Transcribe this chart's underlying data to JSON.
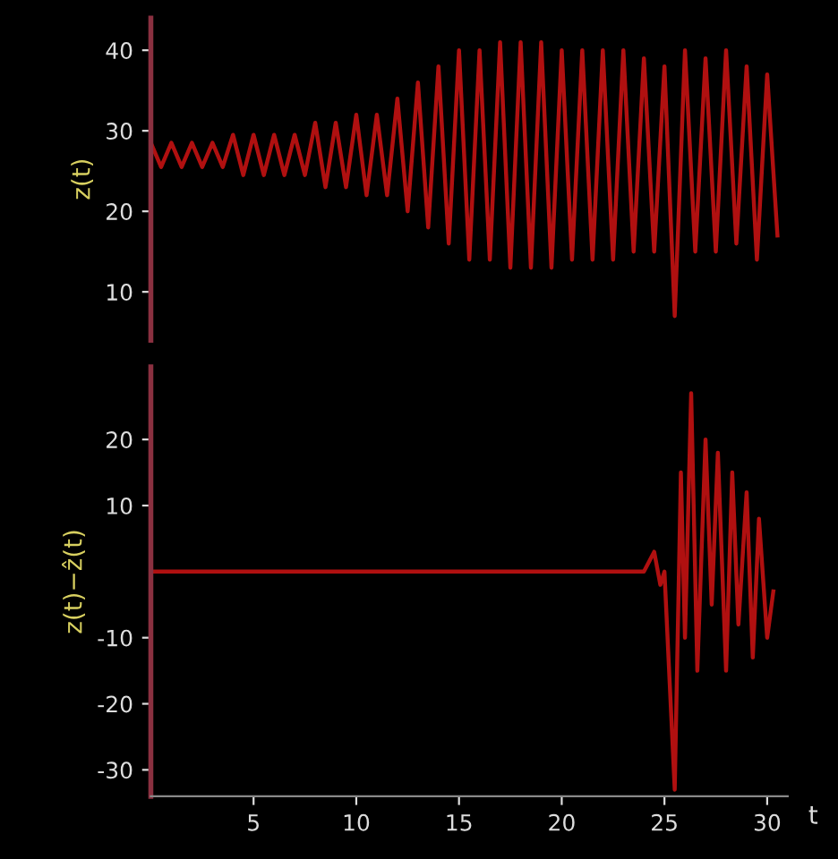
{
  "chart_data": [
    {
      "type": "line",
      "ylabel": "z(t)",
      "tick_labels": "y",
      "ylim": [
        4,
        44
      ],
      "yticks": [
        10,
        20,
        30,
        40
      ],
      "grid": false,
      "legend": false,
      "x": [
        0,
        0.5,
        1,
        1.5,
        2,
        2.5,
        3,
        3.5,
        4,
        4.5,
        5,
        5.5,
        6,
        6.5,
        7,
        7.5,
        8,
        8.5,
        9,
        9.5,
        10,
        10.5,
        11,
        11.5,
        12,
        12.5,
        13,
        13.5,
        14,
        14.5,
        15,
        15.5,
        16,
        16.5,
        17,
        17.5,
        18,
        18.5,
        19,
        19.5,
        20,
        20.5,
        21,
        21.5,
        22,
        22.5,
        23,
        23.5,
        24,
        24.5,
        25,
        25.5,
        26,
        26.5,
        27,
        27.5,
        28,
        28.5,
        29,
        29.5,
        30,
        30.5
      ],
      "series": [
        {
          "color": "#b01010",
          "values": [
            28.5,
            25.5,
            28.5,
            25.5,
            28.5,
            25.5,
            28.5,
            25.5,
            29.5,
            24.5,
            29.5,
            24.5,
            29.5,
            24.5,
            29.5,
            24.5,
            31,
            23,
            31,
            23,
            32,
            22,
            32,
            22,
            34,
            20,
            36,
            18,
            38,
            16,
            40,
            14,
            40,
            14,
            41,
            13,
            41,
            13,
            41,
            13,
            40,
            14,
            40,
            14,
            40,
            14,
            40,
            15,
            39,
            15,
            38,
            7,
            40,
            15,
            39,
            15,
            40,
            16,
            38,
            14,
            37,
            17
          ]
        }
      ]
    },
    {
      "type": "line",
      "ylabel": "z(t)−ẑ(t)",
      "xlabel": "t",
      "xlim": [
        0,
        31
      ],
      "xticks": [
        5,
        10,
        15,
        20,
        25,
        30
      ],
      "ylim": [
        -34,
        31
      ],
      "yticks": [
        -30,
        -20,
        -10,
        10,
        20
      ],
      "grid": false,
      "legend": false,
      "x": [
        0,
        24,
        24.5,
        24.8,
        25,
        25.5,
        25.8,
        26,
        26.3,
        26.6,
        27,
        27.3,
        27.6,
        28,
        28.3,
        28.6,
        29,
        29.3,
        29.6,
        30,
        30.3
      ],
      "series": [
        {
          "color": "#b01010",
          "values": [
            0,
            0,
            3,
            -2,
            0,
            -33,
            15,
            -10,
            27,
            -15,
            20,
            -5,
            18,
            -15,
            15,
            -8,
            12,
            -13,
            8,
            -10,
            -3
          ]
        }
      ]
    }
  ]
}
